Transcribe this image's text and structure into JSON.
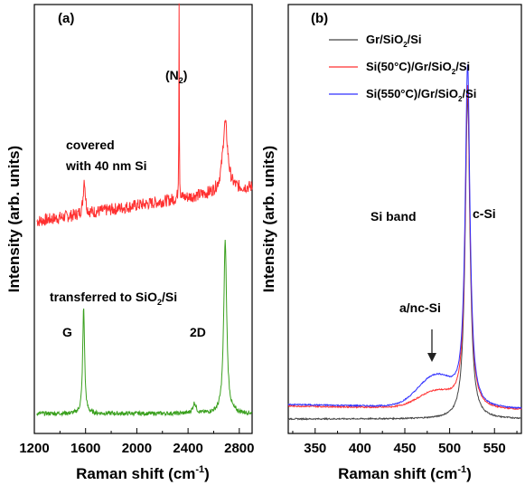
{
  "chart_data": [
    {
      "type": "line",
      "panel_label": "(a)",
      "xlabel": "Raman shift (cm",
      "xlabel_sup": "-1",
      "xlabel_end": ")",
      "ylabel": "Intensity (arb. units)",
      "xlim": [
        1200,
        2900
      ],
      "xticks": [
        1200,
        1600,
        2000,
        2400,
        2800
      ],
      "tick_labels": [
        "1200",
        "1600",
        "2000",
        "2400",
        "2800"
      ],
      "series": [
        {
          "color": "#ff3030",
          "label": "covered with 40 nm Si",
          "baseline": 0.42,
          "noise": 0.018,
          "slope": 0.1,
          "peaks": [
            [
              1590,
              0.1,
              10
            ],
            [
              2330,
              0.58,
              2
            ],
            [
              2690,
              0.2,
              24
            ]
          ]
        },
        {
          "color": "#3aa01e",
          "label": "transferred to SiO2/Si",
          "baseline": 0.0,
          "noise": 0.006,
          "slope": 0.0,
          "peaks": [
            [
              1585,
              0.31,
              9
            ],
            [
              2450,
              0.03,
              15
            ],
            [
              2690,
              0.5,
              14
            ]
          ]
        }
      ],
      "annotations": {
        "n2": "(N",
        "n2_sub": "2",
        "n2_end": ")",
        "covered_line1": "covered",
        "covered_line2": "with 40 nm Si",
        "transferred_a": "transferred to SiO",
        "transferred_sub": "2",
        "transferred_b": "/Si",
        "g": "G",
        "twod": "2D"
      }
    },
    {
      "type": "line",
      "panel_label": "(b)",
      "xlabel": "Raman shift (cm",
      "xlabel_sup": "-1",
      "xlabel_end": ")",
      "ylabel": "Intensity (arb. units)",
      "xlim": [
        320,
        580
      ],
      "xticks": [
        350,
        400,
        450,
        500,
        550
      ],
      "tick_labels": [
        "350",
        "400",
        "450",
        "500",
        "550"
      ],
      "legend_position": "top-right",
      "series": [
        {
          "name": "Gr/SiO2/Si",
          "legend_a": "Gr/SiO",
          "legend_sub": "2",
          "legend_b": "/Si",
          "color": "#444444",
          "base": 0.0,
          "hump": 0.0,
          "peak": 1.0
        },
        {
          "name": "Si(50°C)/Gr/SiO2/Si",
          "legend_a": "Si(50°C)/Gr/SiO",
          "legend_sub": "2",
          "legend_b": "/Si",
          "color": "#ff3030",
          "base": 0.04,
          "hump": 0.05,
          "peak": 1.0
        },
        {
          "name": "Si(550°C)/Gr/SiO2/Si",
          "legend_a": "Si(550°C)/Gr/SiO",
          "legend_sub": "2",
          "legend_b": "/Si",
          "color": "#3030ff",
          "base": 0.045,
          "hump": 0.095,
          "peak": 1.05
        }
      ],
      "annotations": {
        "si_band": "Si band",
        "c_si": "c-Si",
        "a_nc_si": "a/nc-Si"
      }
    }
  ]
}
